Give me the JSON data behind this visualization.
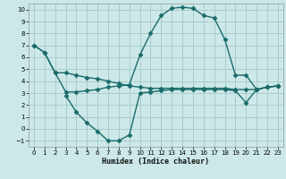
{
  "xlabel": "Humidex (Indice chaleur)",
  "bg_color": "#cce8e8",
  "grid_color": "#aacccc",
  "line_color": "#1a6b6b",
  "marker": "D",
  "markersize": 2.5,
  "linewidth": 1.0,
  "xlim": [
    -0.5,
    23.5
  ],
  "ylim": [
    -1.5,
    10.5
  ],
  "xticks": [
    0,
    1,
    2,
    3,
    4,
    5,
    6,
    7,
    8,
    9,
    10,
    11,
    12,
    13,
    14,
    15,
    16,
    17,
    18,
    19,
    20,
    21,
    22,
    23
  ],
  "yticks": [
    -1,
    0,
    1,
    2,
    3,
    4,
    5,
    6,
    7,
    8,
    9,
    10
  ],
  "line1_x": [
    0,
    1,
    2,
    3,
    4,
    5,
    6,
    7,
    8,
    9,
    10,
    11,
    12,
    13,
    14,
    15,
    16,
    17,
    18,
    19,
    20,
    21,
    22,
    23
  ],
  "line1_y": [
    7.0,
    6.4,
    4.7,
    4.7,
    4.5,
    4.3,
    4.2,
    4.0,
    3.8,
    3.6,
    3.5,
    3.4,
    3.4,
    3.4,
    3.4,
    3.4,
    3.4,
    3.4,
    3.4,
    3.3,
    3.3,
    3.3,
    3.5,
    3.6
  ],
  "line2_x": [
    0,
    1,
    2,
    3,
    4,
    5,
    6,
    7,
    8,
    9,
    10,
    11,
    12,
    13,
    14,
    15,
    16,
    17,
    18,
    19,
    20,
    21,
    22,
    23
  ],
  "line2_y": [
    7.0,
    6.4,
    4.7,
    3.1,
    3.1,
    3.2,
    3.3,
    3.5,
    3.6,
    3.7,
    6.2,
    8.0,
    9.5,
    10.1,
    10.2,
    10.1,
    9.5,
    9.3,
    7.5,
    4.5,
    4.5,
    3.3,
    3.5,
    3.6
  ],
  "line3_x": [
    3,
    4,
    5,
    6,
    7,
    8,
    9,
    10,
    11,
    12,
    13,
    14,
    15,
    16,
    17,
    18,
    19,
    20,
    21,
    22,
    23
  ],
  "line3_y": [
    2.8,
    1.4,
    0.5,
    -0.2,
    -1.0,
    -1.0,
    -0.5,
    3.0,
    3.1,
    3.2,
    3.3,
    3.3,
    3.3,
    3.3,
    3.3,
    3.3,
    3.2,
    2.2,
    3.3,
    3.5,
    3.6
  ]
}
